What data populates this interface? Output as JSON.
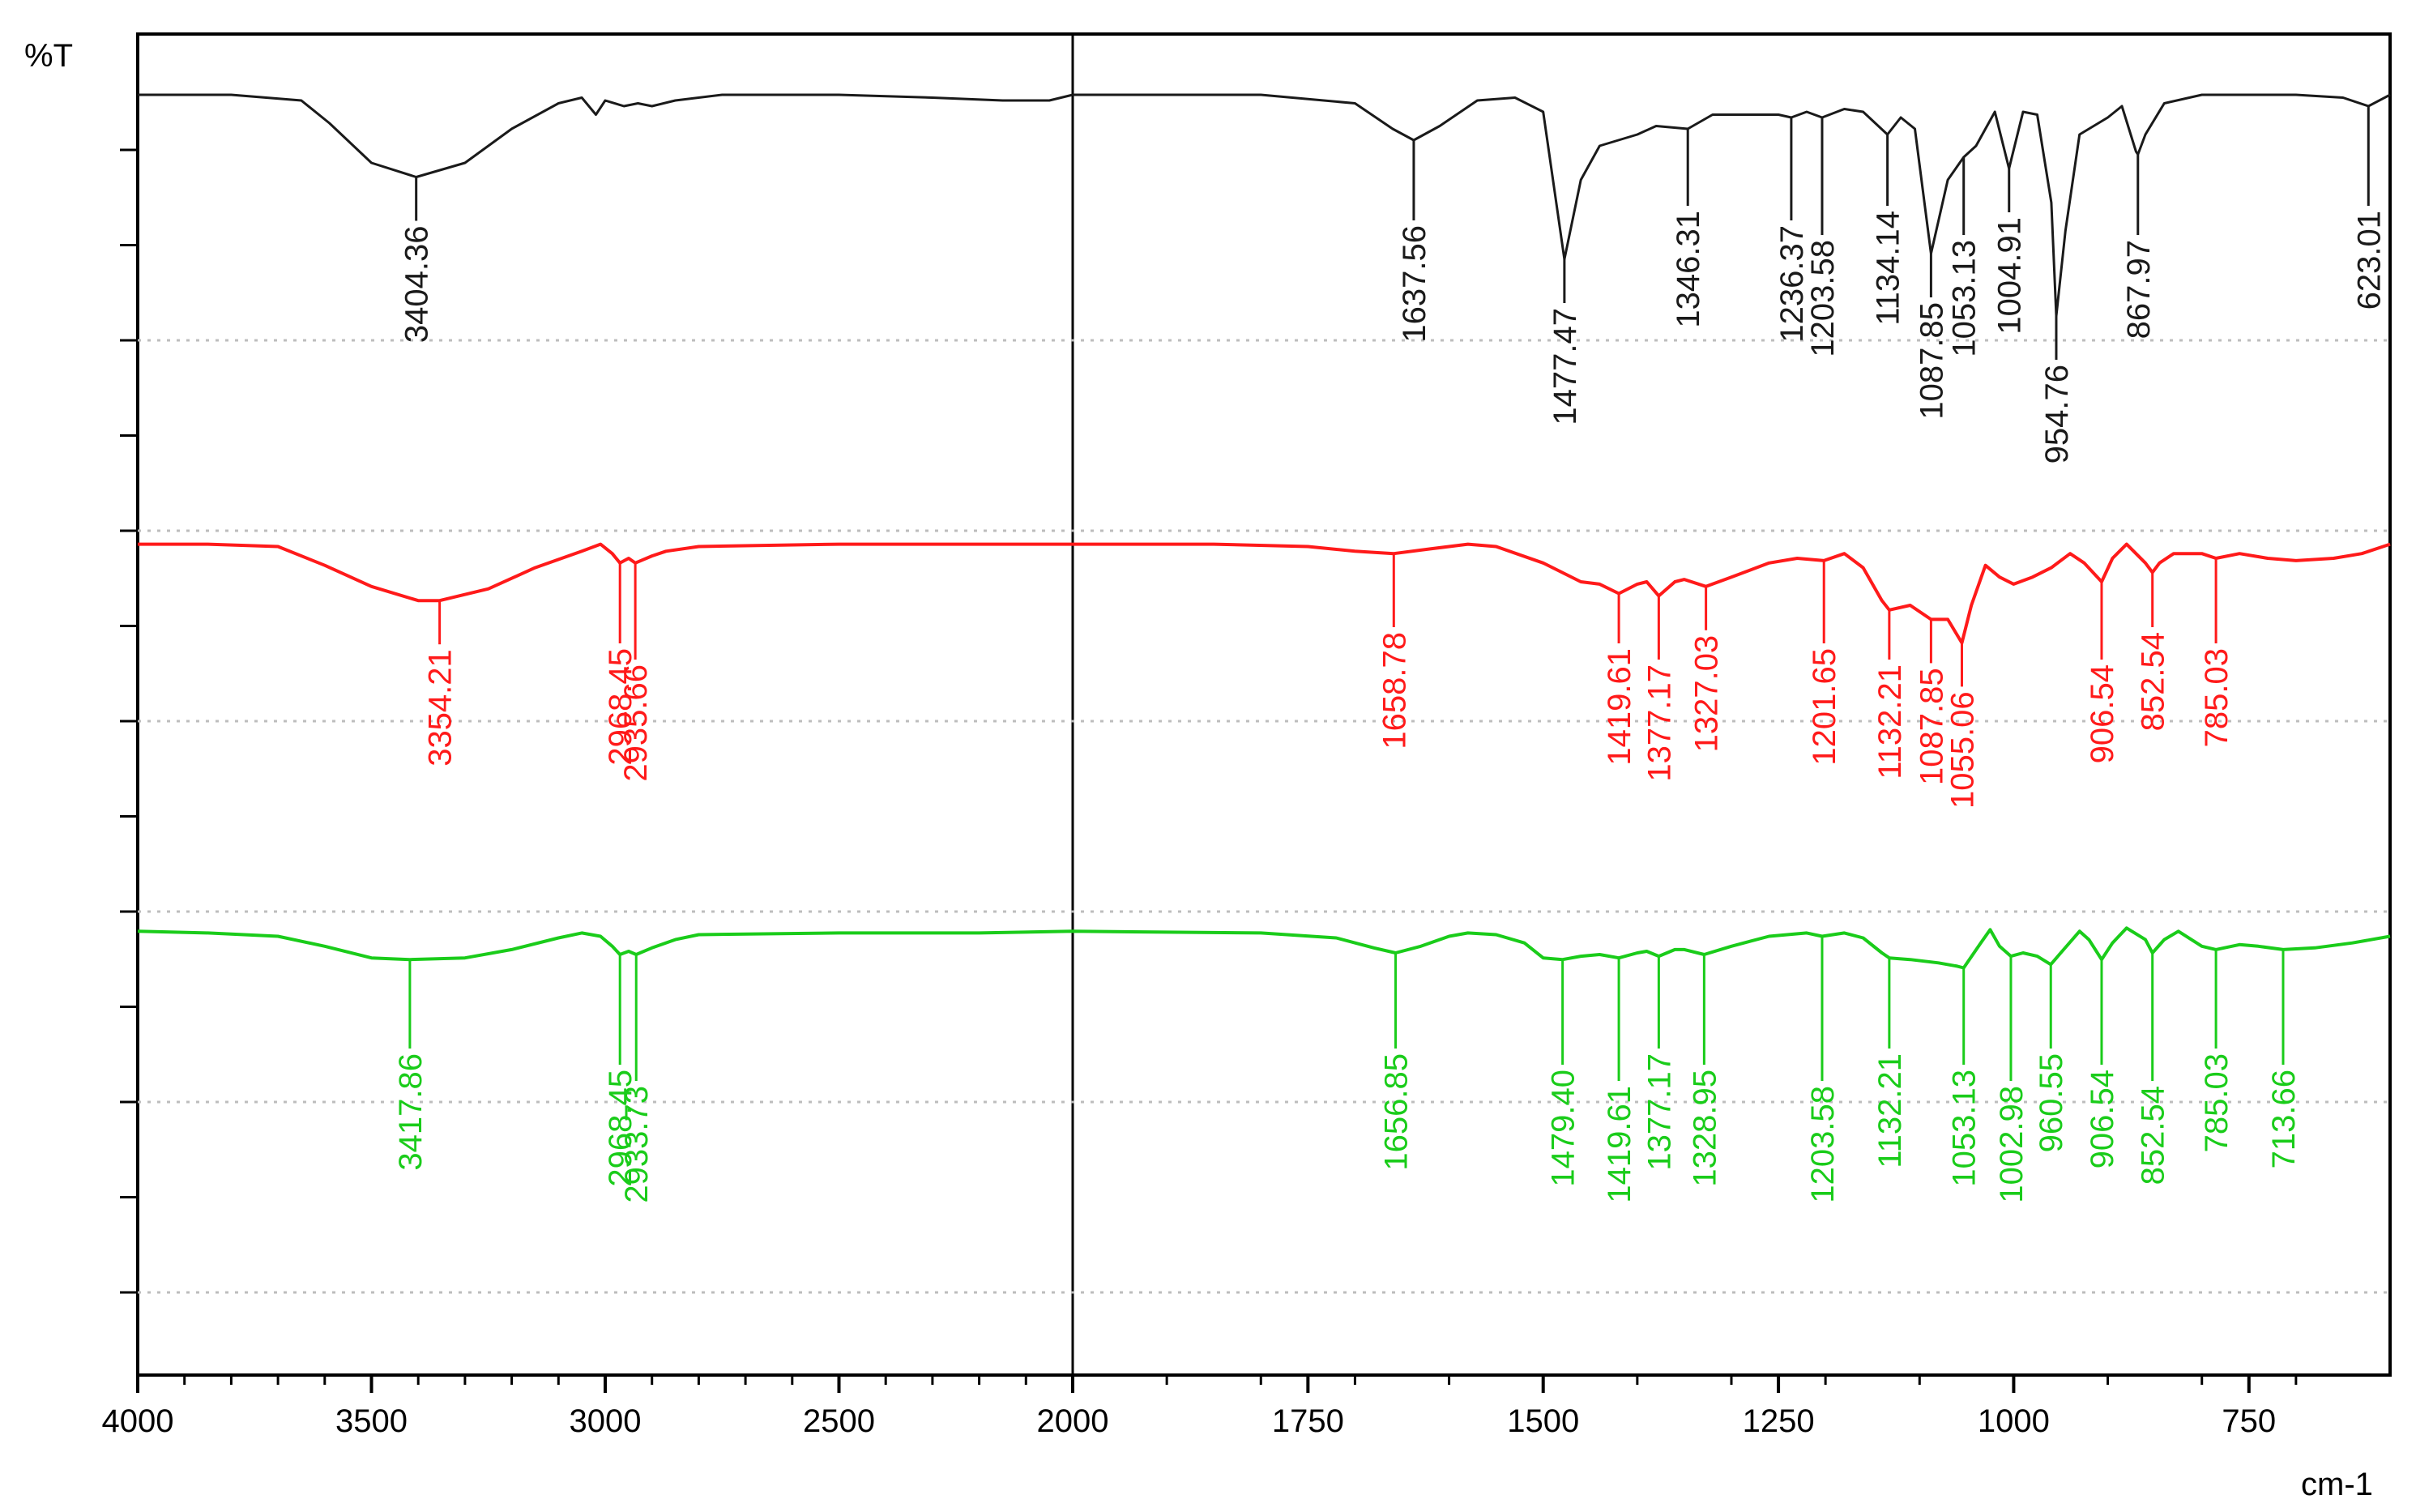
{
  "chart_data": {
    "type": "line",
    "y_axis_label": "%T",
    "x_unit_label": "cm-1",
    "x_ticks": [
      4000,
      3500,
      3000,
      2500,
      2000,
      1750,
      1500,
      1250,
      1000,
      750
    ],
    "x_tick_labels": [
      "4000",
      "3500",
      "3000",
      "2500",
      "2000",
      "1750",
      "1500",
      "1250",
      "1000",
      "750"
    ],
    "x_scale": "split at 2000 cm-1 (4000–2000 left, 2000–600 right)",
    "xlim": [
      4000,
      600
    ],
    "grid": "dotted horizontal lines",
    "series": [
      {
        "color": "#1a1a1a",
        "points": [
          [
            4000,
            98
          ],
          [
            3800,
            98
          ],
          [
            3650,
            96
          ],
          [
            3590,
            88
          ],
          [
            3500,
            74
          ],
          [
            3404.36,
            69
          ],
          [
            3300,
            74
          ],
          [
            3200,
            86
          ],
          [
            3100,
            95
          ],
          [
            3050,
            97
          ],
          [
            3020,
            91
          ],
          [
            3000,
            96
          ],
          [
            2960,
            94
          ],
          [
            2930,
            95
          ],
          [
            2900,
            94
          ],
          [
            2850,
            96
          ],
          [
            2750,
            98
          ],
          [
            2500,
            98
          ],
          [
            2300,
            97
          ],
          [
            2150,
            96
          ],
          [
            2050,
            96
          ],
          [
            2000,
            98
          ],
          [
            1800,
            98
          ],
          [
            1700,
            95
          ],
          [
            1660,
            86
          ],
          [
            1637.56,
            82
          ],
          [
            1610,
            87
          ],
          [
            1570,
            96
          ],
          [
            1530,
            97
          ],
          [
            1500,
            92
          ],
          [
            1477.47,
            40
          ],
          [
            1460,
            68
          ],
          [
            1440,
            80
          ],
          [
            1420,
            82
          ],
          [
            1400,
            84
          ],
          [
            1380,
            87
          ],
          [
            1346.31,
            86
          ],
          [
            1320,
            91
          ],
          [
            1290,
            91
          ],
          [
            1250,
            91
          ],
          [
            1236.37,
            90
          ],
          [
            1220,
            92
          ],
          [
            1203.58,
            90
          ],
          [
            1180,
            93
          ],
          [
            1160,
            92
          ],
          [
            1134.14,
            84
          ],
          [
            1120,
            90
          ],
          [
            1105,
            86
          ],
          [
            1087.85,
            42
          ],
          [
            1070,
            68
          ],
          [
            1053.13,
            76
          ],
          [
            1040,
            80
          ],
          [
            1020,
            92
          ],
          [
            1004.91,
            72
          ],
          [
            990,
            92
          ],
          [
            975,
            91
          ],
          [
            960,
            60
          ],
          [
            954.76,
            20
          ],
          [
            945,
            50
          ],
          [
            930,
            84
          ],
          [
            900,
            90
          ],
          [
            885,
            94
          ],
          [
            870,
            78
          ],
          [
            867.97,
            77
          ],
          [
            860,
            84
          ],
          [
            840,
            95
          ],
          [
            800,
            98
          ],
          [
            700,
            98
          ],
          [
            650,
            97
          ],
          [
            623.01,
            94
          ],
          [
            600,
            98
          ]
        ],
        "peaks": [
          "3404.36",
          "1637.56",
          "1477.47",
          "1346.31",
          "1236.37",
          "1203.58",
          "1134.14",
          "1087.85",
          "1053.13",
          "1004.91",
          "954.76",
          "867.97",
          "623.01"
        ]
      },
      {
        "color": "#ff1a1a",
        "points": [
          [
            4000,
            96
          ],
          [
            3850,
            96
          ],
          [
            3700,
            95
          ],
          [
            3600,
            87
          ],
          [
            3500,
            78
          ],
          [
            3400,
            72
          ],
          [
            3354.21,
            72
          ],
          [
            3250,
            77
          ],
          [
            3150,
            86
          ],
          [
            3050,
            93
          ],
          [
            3010,
            96
          ],
          [
            2985,
            92
          ],
          [
            2968.45,
            88
          ],
          [
            2950,
            90
          ],
          [
            2935.66,
            88
          ],
          [
            2900,
            91
          ],
          [
            2870,
            93
          ],
          [
            2800,
            95
          ],
          [
            2500,
            96
          ],
          [
            2000,
            96
          ],
          [
            1850,
            96
          ],
          [
            1750,
            95
          ],
          [
            1700,
            93
          ],
          [
            1658.78,
            92
          ],
          [
            1620,
            94
          ],
          [
            1580,
            96
          ],
          [
            1550,
            95
          ],
          [
            1500,
            88
          ],
          [
            1460,
            80
          ],
          [
            1440,
            79
          ],
          [
            1419.61,
            75
          ],
          [
            1400,
            79
          ],
          [
            1390,
            80
          ],
          [
            1377.17,
            74
          ],
          [
            1360,
            80
          ],
          [
            1350,
            81
          ],
          [
            1327.03,
            78
          ],
          [
            1300,
            82
          ],
          [
            1260,
            88
          ],
          [
            1230,
            90
          ],
          [
            1201.65,
            89
          ],
          [
            1180,
            92
          ],
          [
            1160,
            86
          ],
          [
            1140,
            72
          ],
          [
            1132.21,
            68
          ],
          [
            1110,
            70
          ],
          [
            1087.85,
            64
          ],
          [
            1070,
            64
          ],
          [
            1055.06,
            54
          ],
          [
            1045,
            70
          ],
          [
            1030,
            87
          ],
          [
            1015,
            82
          ],
          [
            1000,
            79
          ],
          [
            980,
            82
          ],
          [
            960,
            86
          ],
          [
            940,
            92
          ],
          [
            925,
            88
          ],
          [
            906.54,
            80
          ],
          [
            895,
            90
          ],
          [
            880,
            96
          ],
          [
            860,
            88
          ],
          [
            852.54,
            84
          ],
          [
            845,
            88
          ],
          [
            830,
            92
          ],
          [
            800,
            92
          ],
          [
            785.03,
            90
          ],
          [
            760,
            92
          ],
          [
            730,
            90
          ],
          [
            700,
            89
          ],
          [
            660,
            90
          ],
          [
            630,
            92
          ],
          [
            600,
            96
          ]
        ],
        "peaks": [
          "3354.21",
          "2968.45",
          "2935.66",
          "1658.78",
          "1419.61",
          "1377.17",
          "1327.03",
          "1201.65",
          "1132.21",
          "1087.85",
          "1055.06",
          "906.54",
          "852.54",
          "785.03"
        ]
      },
      {
        "color": "#1acc1a",
        "points": [
          [
            4000,
            93
          ],
          [
            3850,
            92
          ],
          [
            3700,
            90
          ],
          [
            3600,
            84
          ],
          [
            3500,
            77
          ],
          [
            3417.86,
            76
          ],
          [
            3300,
            77
          ],
          [
            3200,
            82
          ],
          [
            3100,
            89
          ],
          [
            3050,
            92
          ],
          [
            3010,
            90
          ],
          [
            2985,
            84
          ],
          [
            2968.45,
            79
          ],
          [
            2950,
            81
          ],
          [
            2933.73,
            79
          ],
          [
            2900,
            83
          ],
          [
            2850,
            88
          ],
          [
            2800,
            91
          ],
          [
            2500,
            92
          ],
          [
            2200,
            92
          ],
          [
            2000,
            93
          ],
          [
            1800,
            92
          ],
          [
            1720,
            89
          ],
          [
            1680,
            83
          ],
          [
            1656.85,
            80
          ],
          [
            1630,
            84
          ],
          [
            1600,
            90
          ],
          [
            1580,
            92
          ],
          [
            1550,
            91
          ],
          [
            1520,
            86
          ],
          [
            1500,
            77
          ],
          [
            1479.4,
            76
          ],
          [
            1460,
            78
          ],
          [
            1440,
            79
          ],
          [
            1419.61,
            77
          ],
          [
            1400,
            80
          ],
          [
            1390,
            81
          ],
          [
            1377.17,
            78
          ],
          [
            1360,
            82
          ],
          [
            1350,
            82
          ],
          [
            1328.95,
            79
          ],
          [
            1300,
            84
          ],
          [
            1260,
            90
          ],
          [
            1220,
            92
          ],
          [
            1203.58,
            90
          ],
          [
            1180,
            92
          ],
          [
            1160,
            89
          ],
          [
            1140,
            80
          ],
          [
            1132.21,
            77
          ],
          [
            1110,
            76
          ],
          [
            1080,
            74
          ],
          [
            1060,
            72
          ],
          [
            1053.13,
            71
          ],
          [
            1035,
            86
          ],
          [
            1025,
            94
          ],
          [
            1015,
            84
          ],
          [
            1002.98,
            78
          ],
          [
            990,
            80
          ],
          [
            975,
            78
          ],
          [
            960.55,
            73
          ],
          [
            950,
            80
          ],
          [
            930,
            93
          ],
          [
            920,
            88
          ],
          [
            906.54,
            76
          ],
          [
            895,
            86
          ],
          [
            880,
            95
          ],
          [
            860,
            88
          ],
          [
            852.54,
            80
          ],
          [
            840,
            88
          ],
          [
            825,
            93
          ],
          [
            800,
            84
          ],
          [
            785.03,
            82
          ],
          [
            760,
            85
          ],
          [
            740,
            84
          ],
          [
            713.66,
            82
          ],
          [
            680,
            83
          ],
          [
            640,
            86
          ],
          [
            600,
            90
          ]
        ],
        "peaks": [
          "3417.86",
          "2968.45",
          "2933.73",
          "1656.85",
          "1479.40",
          "1419.61",
          "1377.17",
          "1328.95",
          "1203.58",
          "1132.21",
          "1053.13",
          "1002.98",
          "960.55",
          "906.54",
          "852.54",
          "785.03",
          "713.66"
        ]
      }
    ]
  }
}
